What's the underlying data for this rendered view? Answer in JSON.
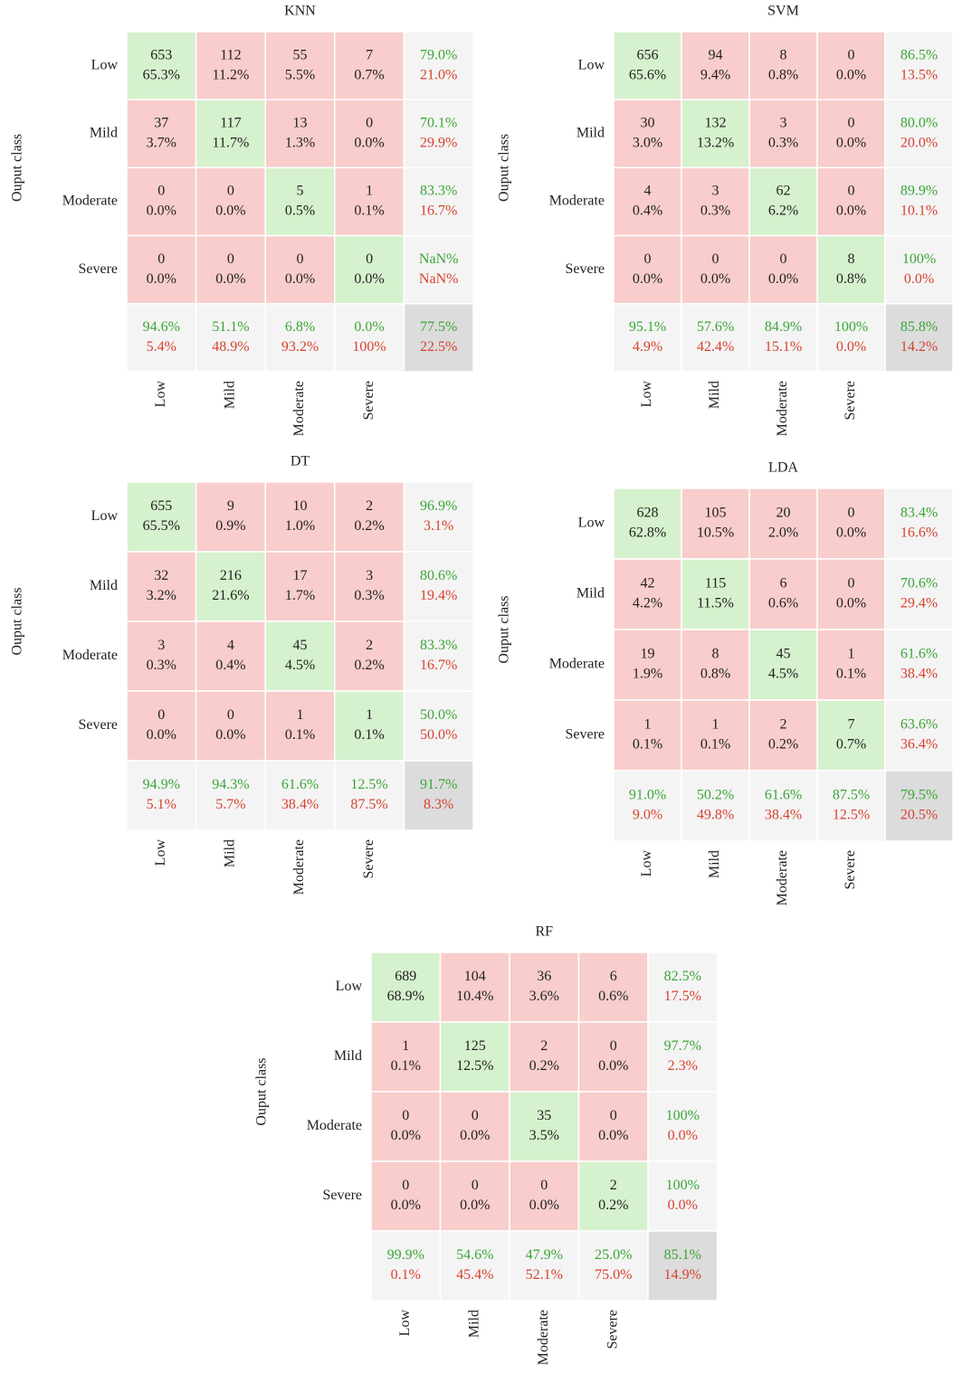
{
  "matrices": [
    {
      "title": "KNN",
      "y_label": "Ouput class",
      "row_labels": [
        "Low",
        "Mild",
        "Moderate",
        "Severe"
      ],
      "col_labels": [
        "Low",
        "Mild",
        "Moderate",
        "Severe"
      ],
      "cells": [
        [
          [
            "653",
            "65.3%"
          ],
          [
            "112",
            "11.2%"
          ],
          [
            "55",
            "5.5%"
          ],
          [
            "7",
            "0.7%"
          ],
          [
            "79.0%",
            "21.0%"
          ]
        ],
        [
          [
            "37",
            "3.7%"
          ],
          [
            "117",
            "11.7%"
          ],
          [
            "13",
            "1.3%"
          ],
          [
            "0",
            "0.0%"
          ],
          [
            "70.1%",
            "29.9%"
          ]
        ],
        [
          [
            "0",
            "0.0%"
          ],
          [
            "0",
            "0.0%"
          ],
          [
            "5",
            "0.5%"
          ],
          [
            "1",
            "0.1%"
          ],
          [
            "83.3%",
            "16.7%"
          ]
        ],
        [
          [
            "0",
            "0.0%"
          ],
          [
            "0",
            "0.0%"
          ],
          [
            "0",
            "0.0%"
          ],
          [
            "0",
            "0.0%"
          ],
          [
            "NaN%",
            "NaN%"
          ]
        ],
        [
          [
            "94.6%",
            "5.4%"
          ],
          [
            "51.1%",
            "48.9%"
          ],
          [
            "6.8%",
            "93.2%"
          ],
          [
            "0.0%",
            "100%"
          ],
          [
            "77.5%",
            "22.5%"
          ]
        ]
      ]
    },
    {
      "title": "SVM",
      "y_label": "Ouput class",
      "row_labels": [
        "Low",
        "Mild",
        "Moderate",
        "Severe"
      ],
      "col_labels": [
        "Low",
        "Mild",
        "Moderate",
        "Severe"
      ],
      "cells": [
        [
          [
            "656",
            "65.6%"
          ],
          [
            "94",
            "9.4%"
          ],
          [
            "8",
            "0.8%"
          ],
          [
            "0",
            "0.0%"
          ],
          [
            "86.5%",
            "13.5%"
          ]
        ],
        [
          [
            "30",
            "3.0%"
          ],
          [
            "132",
            "13.2%"
          ],
          [
            "3",
            "0.3%"
          ],
          [
            "0",
            "0.0%"
          ],
          [
            "80.0%",
            "20.0%"
          ]
        ],
        [
          [
            "4",
            "0.4%"
          ],
          [
            "3",
            "0.3%"
          ],
          [
            "62",
            "6.2%"
          ],
          [
            "0",
            "0.0%"
          ],
          [
            "89.9%",
            "10.1%"
          ]
        ],
        [
          [
            "0",
            "0.0%"
          ],
          [
            "0",
            "0.0%"
          ],
          [
            "0",
            "0.0%"
          ],
          [
            "8",
            "0.8%"
          ],
          [
            "100%",
            "0.0%"
          ]
        ],
        [
          [
            "95.1%",
            "4.9%"
          ],
          [
            "57.6%",
            "42.4%"
          ],
          [
            "84.9%",
            "15.1%"
          ],
          [
            "100%",
            "0.0%"
          ],
          [
            "85.8%",
            "14.2%"
          ]
        ]
      ]
    },
    {
      "title": "DT",
      "y_label": "Ouput class",
      "row_labels": [
        "Low",
        "Mild",
        "Moderate",
        "Severe"
      ],
      "col_labels": [
        "Low",
        "Mild",
        "Moderate",
        "Severe"
      ],
      "cells": [
        [
          [
            "655",
            "65.5%"
          ],
          [
            "9",
            "0.9%"
          ],
          [
            "10",
            "1.0%"
          ],
          [
            "2",
            "0.2%"
          ],
          [
            "96.9%",
            "3.1%"
          ]
        ],
        [
          [
            "32",
            "3.2%"
          ],
          [
            "216",
            "21.6%"
          ],
          [
            "17",
            "1.7%"
          ],
          [
            "3",
            "0.3%"
          ],
          [
            "80.6%",
            "19.4%"
          ]
        ],
        [
          [
            "3",
            "0.3%"
          ],
          [
            "4",
            "0.4%"
          ],
          [
            "45",
            "4.5%"
          ],
          [
            "2",
            "0.2%"
          ],
          [
            "83.3%",
            "16.7%"
          ]
        ],
        [
          [
            "0",
            "0.0%"
          ],
          [
            "0",
            "0.0%"
          ],
          [
            "1",
            "0.1%"
          ],
          [
            "1",
            "0.1%"
          ],
          [
            "50.0%",
            "50.0%"
          ]
        ],
        [
          [
            "94.9%",
            "5.1%"
          ],
          [
            "94.3%",
            "5.7%"
          ],
          [
            "61.6%",
            "38.4%"
          ],
          [
            "12.5%",
            "87.5%"
          ],
          [
            "91.7%",
            "8.3%"
          ]
        ]
      ]
    },
    {
      "title": "LDA",
      "y_label": "Ouput class",
      "row_labels": [
        "Low",
        "Mild",
        "Moderate",
        "Severe"
      ],
      "col_labels": [
        "Low",
        "Mild",
        "Moderate",
        "Severe"
      ],
      "cells": [
        [
          [
            "628",
            "62.8%"
          ],
          [
            "105",
            "10.5%"
          ],
          [
            "20",
            "2.0%"
          ],
          [
            "0",
            "0.0%"
          ],
          [
            "83.4%",
            "16.6%"
          ]
        ],
        [
          [
            "42",
            "4.2%"
          ],
          [
            "115",
            "11.5%"
          ],
          [
            "6",
            "0.6%"
          ],
          [
            "0",
            "0.0%"
          ],
          [
            "70.6%",
            "29.4%"
          ]
        ],
        [
          [
            "19",
            "1.9%"
          ],
          [
            "8",
            "0.8%"
          ],
          [
            "45",
            "4.5%"
          ],
          [
            "1",
            "0.1%"
          ],
          [
            "61.6%",
            "38.4%"
          ]
        ],
        [
          [
            "1",
            "0.1%"
          ],
          [
            "1",
            "0.1%"
          ],
          [
            "2",
            "0.2%"
          ],
          [
            "7",
            "0.7%"
          ],
          [
            "63.6%",
            "36.4%"
          ]
        ],
        [
          [
            "91.0%",
            "9.0%"
          ],
          [
            "50.2%",
            "49.8%"
          ],
          [
            "61.6%",
            "38.4%"
          ],
          [
            "87.5%",
            "12.5%"
          ],
          [
            "79.5%",
            "20.5%"
          ]
        ]
      ]
    },
    {
      "title": "RF",
      "y_label": "Ouput class",
      "row_labels": [
        "Low",
        "Mild",
        "Moderate",
        "Severe"
      ],
      "col_labels": [
        "Low",
        "Mild",
        "Moderate",
        "Severe"
      ],
      "cells": [
        [
          [
            "689",
            "68.9%"
          ],
          [
            "104",
            "10.4%"
          ],
          [
            "36",
            "3.6%"
          ],
          [
            "6",
            "0.6%"
          ],
          [
            "82.5%",
            "17.5%"
          ]
        ],
        [
          [
            "1",
            "0.1%"
          ],
          [
            "125",
            "12.5%"
          ],
          [
            "2",
            "0.2%"
          ],
          [
            "0",
            "0.0%"
          ],
          [
            "97.7%",
            "2.3%"
          ]
        ],
        [
          [
            "0",
            "0.0%"
          ],
          [
            "0",
            "0.0%"
          ],
          [
            "35",
            "3.5%"
          ],
          [
            "0",
            "0.0%"
          ],
          [
            "100%",
            "0.0%"
          ]
        ],
        [
          [
            "0",
            "0.0%"
          ],
          [
            "0",
            "0.0%"
          ],
          [
            "0",
            "0.0%"
          ],
          [
            "2",
            "0.2%"
          ],
          [
            "100%",
            "0.0%"
          ]
        ],
        [
          [
            "99.9%",
            "0.1%"
          ],
          [
            "54.6%",
            "45.4%"
          ],
          [
            "47.9%",
            "52.1%"
          ],
          [
            "25.0%",
            "75.0%"
          ],
          [
            "85.1%",
            "14.9%"
          ]
        ]
      ]
    }
  ]
}
